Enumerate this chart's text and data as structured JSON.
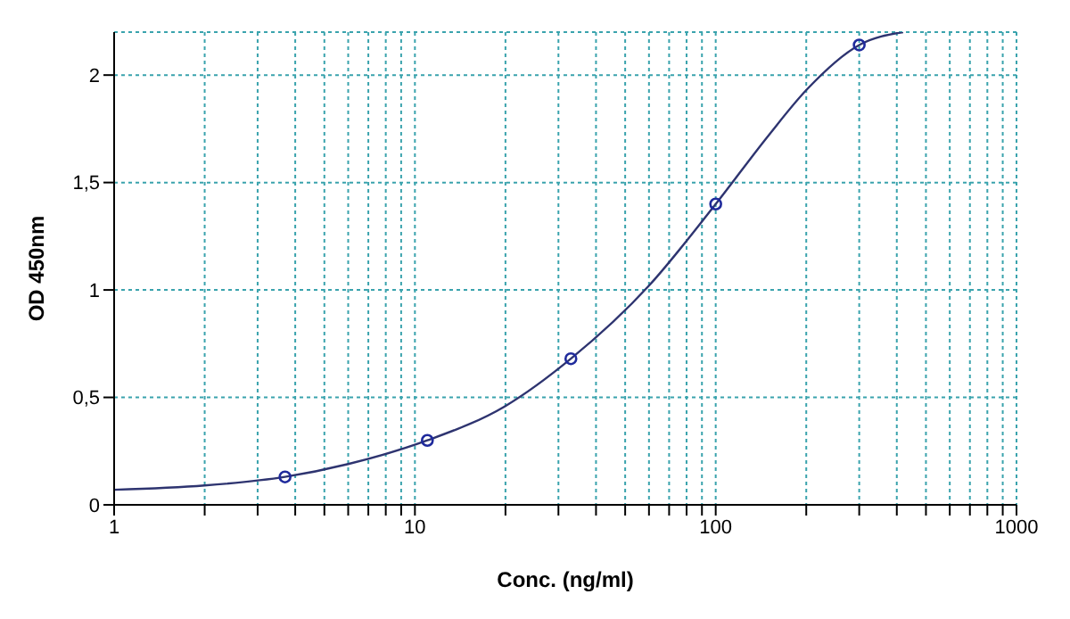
{
  "chart_data": {
    "type": "scatter",
    "xlabel": "Conc. (ng/ml)",
    "ylabel": "OD 450nm",
    "log": "x",
    "grid": true,
    "xlim": [
      1,
      1000
    ],
    "xticks": [
      1,
      {
        "value": 2,
        "label": null
      },
      {
        "value": 3,
        "label": null
      },
      {
        "value": 4,
        "label": null
      },
      {
        "value": 5,
        "label": null
      },
      {
        "value": 6,
        "label": null
      },
      {
        "value": 7,
        "label": null
      },
      {
        "value": 8,
        "label": null
      },
      {
        "value": 9,
        "label": null
      },
      10,
      {
        "value": 20,
        "label": null
      },
      {
        "value": 30,
        "label": null
      },
      {
        "value": 40,
        "label": null
      },
      {
        "value": 50,
        "label": null
      },
      {
        "value": 60,
        "label": null
      },
      {
        "value": 70,
        "label": null
      },
      {
        "value": 80,
        "label": null
      },
      {
        "value": 90,
        "label": null
      },
      100,
      {
        "value": 200,
        "label": null
      },
      {
        "value": 300,
        "label": null
      },
      {
        "value": 400,
        "label": null
      },
      {
        "value": 500,
        "label": null
      },
      {
        "value": 600,
        "label": null
      },
      {
        "value": 700,
        "label": null
      },
      {
        "value": 800,
        "label": null
      },
      {
        "value": 900,
        "label": null
      },
      1000
    ],
    "ylim": [
      0,
      2.2
    ],
    "yticks": [
      0,
      {
        "value": 0.5,
        "label": "0,5"
      },
      1,
      {
        "value": 1.5,
        "label": "1,5"
      },
      2
    ],
    "series": [
      {
        "type": "line",
        "marker": "none",
        "color": "#2e3470",
        "x": [
          1,
          2,
          3.7,
          6,
          11,
          20,
          33,
          60,
          100,
          150,
          200,
          300,
          420
        ],
        "values": [
          0.07,
          0.09,
          0.13,
          0.19,
          0.3,
          0.46,
          0.68,
          1.02,
          1.4,
          1.72,
          1.93,
          2.14,
          2.2
        ]
      },
      {
        "marker": "circle",
        "color": "#1f2a9c",
        "x": [
          3.7,
          11,
          33,
          100,
          300
        ],
        "values": [
          0.13,
          0.3,
          0.68,
          1.4,
          2.14
        ]
      }
    ]
  }
}
